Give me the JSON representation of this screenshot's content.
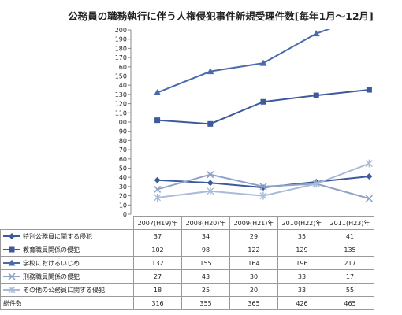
{
  "chart_data": {
    "type": "line",
    "title": "公務員の職務執行に伴う人権侵犯事件新規受理件数[毎年1月～12月]",
    "categories": [
      "2007(H19)年",
      "2008(H20)年",
      "2009(H21)年",
      "2010(H22)年",
      "2011(H23)年"
    ],
    "ylim": [
      0,
      200
    ],
    "ytick_step": 10,
    "grid": false,
    "legend_placement": "table-left",
    "series": [
      {
        "name": "特別公務員に関する侵犯",
        "values": [
          37,
          34,
          29,
          35,
          41
        ],
        "color": "#3c5a9c",
        "marker": "diamond"
      },
      {
        "name": "教育職員関係の侵犯",
        "values": [
          102,
          98,
          122,
          129,
          135
        ],
        "color": "#3c5a9c",
        "marker": "square"
      },
      {
        "name": "学校におけるいじめ",
        "values": [
          132,
          155,
          164,
          196,
          217
        ],
        "color": "#4a6aae",
        "marker": "triangle"
      },
      {
        "name": "刑務職員関係の侵犯",
        "values": [
          27,
          43,
          30,
          33,
          17
        ],
        "color": "#8fa2c8",
        "marker": "x"
      },
      {
        "name": "その他の公務員に関する侵犯",
        "values": [
          18,
          25,
          20,
          33,
          55
        ],
        "color": "#a8bcd8",
        "marker": "star"
      }
    ],
    "totals_label": "総件数",
    "totals": [
      316,
      355,
      365,
      426,
      465
    ]
  }
}
